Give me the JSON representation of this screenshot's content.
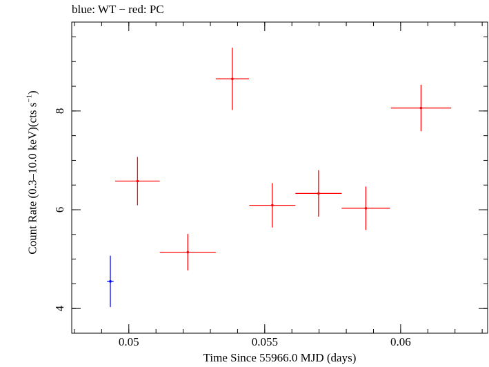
{
  "chart_data": {
    "type": "scatter",
    "title": "blue: WT − red: PC",
    "xlabel": "Time Since 55966.0 MJD (days)",
    "ylabel": {
      "prefix": "Count Rate (0.3–10.0 keV)(cts s",
      "sup": "−1",
      "suffix": ")"
    },
    "xlim": [
      0.0479,
      0.0632
    ],
    "ylim": [
      3.5,
      9.8
    ],
    "xticks": [
      {
        "value": 0.05,
        "label": "0.05"
      },
      {
        "value": 0.055,
        "label": "0.055"
      },
      {
        "value": 0.06,
        "label": "0.06"
      }
    ],
    "yticks": [
      {
        "value": 4,
        "label": "4"
      },
      {
        "value": 6,
        "label": "6"
      },
      {
        "value": 8,
        "label": "8"
      }
    ],
    "x_minor_step": 0.001,
    "y_minor_step": 0.5,
    "grid": false,
    "series": [
      {
        "mode": "WT",
        "color": "#0000ff",
        "points": [
          {
            "x": 0.04932,
            "xerr": 0.00012,
            "y": 4.55,
            "yerr_lo": 0.52,
            "yerr_hi": 0.52
          }
        ]
      },
      {
        "mode": "PC",
        "color": "#ff0000",
        "points": [
          {
            "x": 0.05032,
            "xerr": 0.00082,
            "y": 6.58,
            "yerr_lo": 0.49,
            "yerr_hi": 0.49
          },
          {
            "x": 0.05217,
            "xerr": 0.00103,
            "y": 5.14,
            "yerr_lo": 0.37,
            "yerr_hi": 0.37
          },
          {
            "x": 0.05381,
            "xerr": 0.00061,
            "y": 8.65,
            "yerr_lo": 0.63,
            "yerr_hi": 0.63
          },
          {
            "x": 0.05528,
            "xerr": 0.00085,
            "y": 6.09,
            "yerr_lo": 0.45,
            "yerr_hi": 0.45
          },
          {
            "x": 0.05698,
            "xerr": 0.00085,
            "y": 6.33,
            "yerr_lo": 0.47,
            "yerr_hi": 0.47
          },
          {
            "x": 0.05872,
            "xerr": 0.00089,
            "y": 6.03,
            "yerr_lo": 0.44,
            "yerr_hi": 0.44
          },
          {
            "x": 0.06075,
            "xerr": 0.00111,
            "y": 8.06,
            "yerr_lo": 0.47,
            "yerr_hi": 0.47
          }
        ]
      }
    ]
  }
}
